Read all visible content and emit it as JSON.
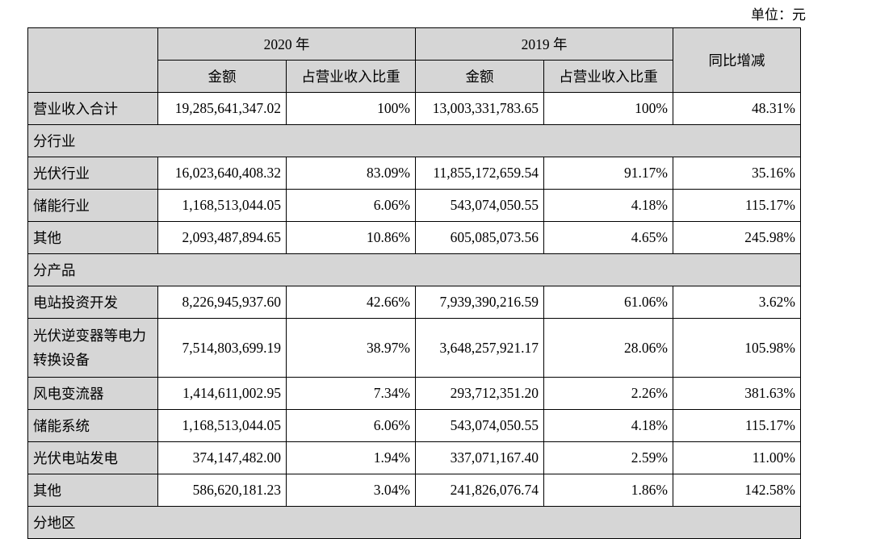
{
  "unit_label": "单位：元",
  "header": {
    "year_2020": "2020 年",
    "year_2019": "2019 年",
    "amount": "金额",
    "ratio": "占营业收入比重",
    "yoy": "同比增减"
  },
  "total": {
    "label": "营业收入合计",
    "values": [
      "19,285,641,347.02",
      "100%",
      "13,003,331,783.65",
      "100%",
      "48.31%"
    ]
  },
  "sections": [
    {
      "title": "分行业",
      "rows": [
        {
          "label": "光伏行业",
          "values": [
            "16,023,640,408.32",
            "83.09%",
            "11,855,172,659.54",
            "91.17%",
            "35.16%"
          ]
        },
        {
          "label": "储能行业",
          "values": [
            "1,168,513,044.05",
            "6.06%",
            "543,074,050.55",
            "4.18%",
            "115.17%"
          ]
        },
        {
          "label": "其他",
          "values": [
            "2,093,487,894.65",
            "10.86%",
            "605,085,073.56",
            "4.65%",
            "245.98%"
          ]
        }
      ]
    },
    {
      "title": "分产品",
      "rows": [
        {
          "label": "电站投资开发",
          "values": [
            "8,226,945,937.60",
            "42.66%",
            "7,939,390,216.59",
            "61.06%",
            "3.62%"
          ]
        },
        {
          "label": "光伏逆变器等电力转换设备",
          "values": [
            "7,514,803,699.19",
            "38.97%",
            "3,648,257,921.17",
            "28.06%",
            "105.98%"
          ]
        },
        {
          "label": "风电变流器",
          "values": [
            "1,414,611,002.95",
            "7.34%",
            "293,712,351.20",
            "2.26%",
            "381.63%"
          ]
        },
        {
          "label": "储能系统",
          "values": [
            "1,168,513,044.05",
            "6.06%",
            "543,074,050.55",
            "4.18%",
            "115.17%"
          ]
        },
        {
          "label": "光伏电站发电",
          "values": [
            "374,147,482.00",
            "1.94%",
            "337,071,167.40",
            "2.59%",
            "11.00%"
          ]
        },
        {
          "label": "其他",
          "values": [
            "586,620,181.23",
            "3.04%",
            "241,826,076.74",
            "1.86%",
            "142.58%"
          ]
        }
      ]
    },
    {
      "title": "分地区",
      "rows": []
    }
  ]
}
